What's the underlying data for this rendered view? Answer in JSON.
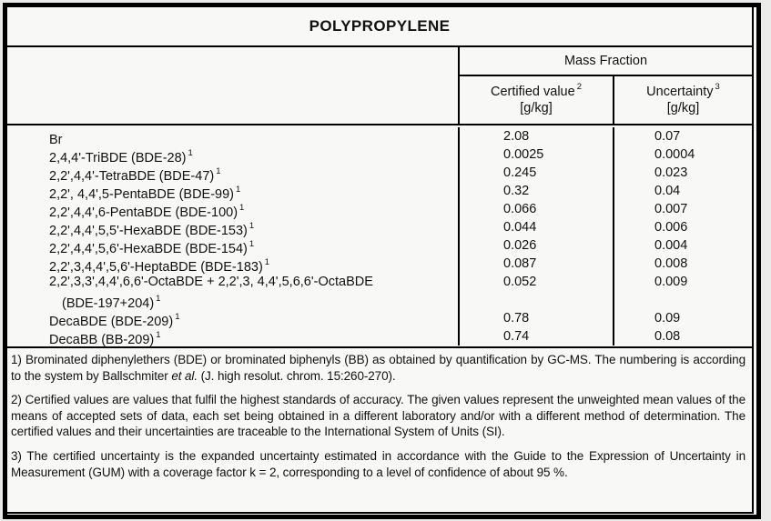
{
  "title": "POLYPROPYLENE",
  "table": {
    "group_header": "Mass Fraction",
    "columns": {
      "certified": {
        "label": "Certified value",
        "footnote_ref": "2",
        "unit": "[g/kg]"
      },
      "uncertainty": {
        "label": "Uncertainty",
        "footnote_ref": "3",
        "unit": "[g/kg]"
      }
    },
    "rows": [
      {
        "name": "Br",
        "ref": "",
        "certified": "2.08",
        "uncertainty": "0.07"
      },
      {
        "name": "2,4,4'-TriBDE (BDE-28)",
        "ref": "1",
        "certified": "0.0025",
        "uncertainty": "0.0004"
      },
      {
        "name": "2,2',4,4'-TetraBDE (BDE-47)",
        "ref": "1",
        "certified": "0.245",
        "uncertainty": "0.023"
      },
      {
        "name": "2,2', 4,4',5-PentaBDE (BDE-99)",
        "ref": "1",
        "certified": "0.32",
        "uncertainty": "0.04"
      },
      {
        "name": "2,2',4,4',6-PentaBDE (BDE-100)",
        "ref": "1",
        "certified": "0.066",
        "uncertainty": "0.007"
      },
      {
        "name": "2,2',4,4',5,5'-HexaBDE (BDE-153)",
        "ref": "1",
        "certified": "0.044",
        "uncertainty": "0.006"
      },
      {
        "name": "2,2',4,4',5,6'-HexaBDE (BDE-154)",
        "ref": "1",
        "certified": "0.026",
        "uncertainty": "0.004"
      },
      {
        "name": "2,2',3,4,4',5,6'-HeptaBDE (BDE-183)",
        "ref": "1",
        "certified": "0.087",
        "uncertainty": "0.008"
      },
      {
        "name": "2,2',3,3',4,4',6,6'-OctaBDE + 2,2',3, 4,4',5,6,6'-OctaBDE",
        "name_line2": "(BDE-197+204)",
        "ref": "1",
        "certified": "0.052",
        "uncertainty": "0.009"
      },
      {
        "name": "DecaBDE (BDE-209)",
        "ref": "1",
        "certified": "0.78",
        "uncertainty": "0.09"
      },
      {
        "name": "DecaBB (BB-209)",
        "ref": "1",
        "certified": "0.74",
        "uncertainty": "0.08"
      }
    ]
  },
  "footnotes": {
    "fn1": {
      "pre": "1) Brominated diphenylethers (BDE) or brominated biphenyls (BB) as obtained by quantification by GC-MS. The numbering is according to the system by Ballschmiter ",
      "italic": "et al.",
      "post": " (J. high resolut. chrom. 15:260-270)."
    },
    "fn2": "2) Certified values are values that fulfil the highest standards of accuracy. The given values represent the unweighted mean values of the means of accepted sets of data, each set being obtained in a different laboratory and/or with a different method of determination. The certified values and their uncertainties are traceable to the International System of Units (SI).",
    "fn3": "3) The certified uncertainty is the expanded uncertainty estimated in accordance with the Guide to the Expression of Uncertainty in Measurement (GUM) with a coverage factor k = 2, corresponding to a level of confidence of about 95 %."
  },
  "colors": {
    "border": "#000000",
    "page_bg": "#f8f8f6",
    "outer_bg": "#ebebe9",
    "text": "#111111"
  }
}
